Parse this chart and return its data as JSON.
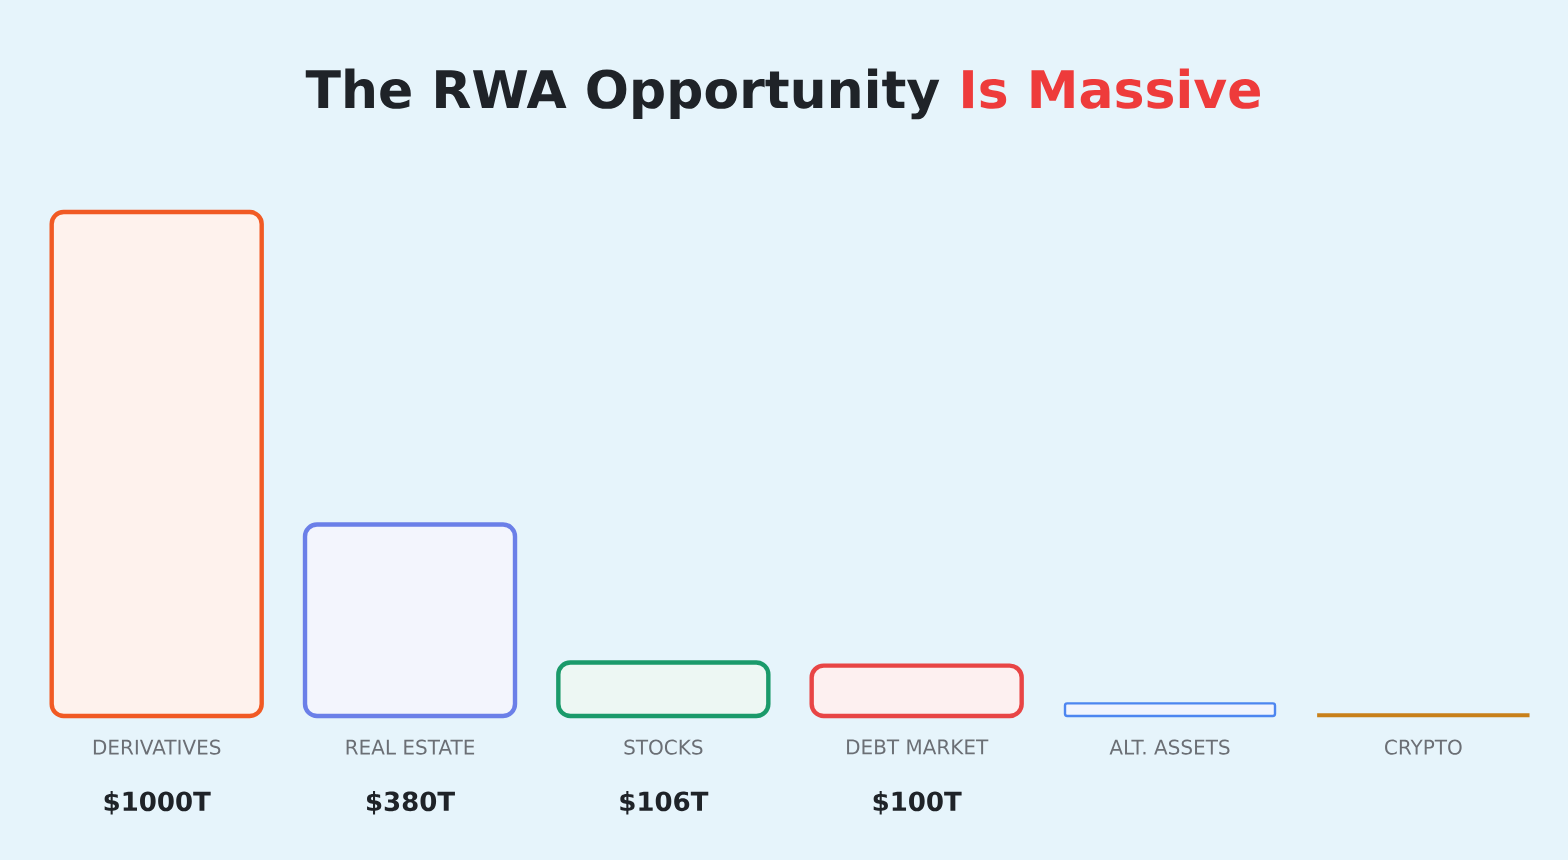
{
  "chart_data": {
    "type": "bar",
    "title": "The RWA Opportunity **Is Massive**",
    "categories": [
      "DERIVATIVES",
      "REAL ESTATE",
      "STOCKS",
      "DEBT MARKET",
      "ALT. ASSETS",
      "CRYPTO"
    ],
    "values": [
      1000,
      380,
      106,
      100,
      25,
      3
    ],
    "colors": [
      "#f15a24",
      "#6b7fe8",
      "#1a9a6a",
      "#e84545",
      "#4d86f0",
      "#c8801a"
    ],
    "value_labels": [
      "$1000T",
      "$380T",
      "$106T",
      "$100T",
      null,
      null
    ]
  }
}
